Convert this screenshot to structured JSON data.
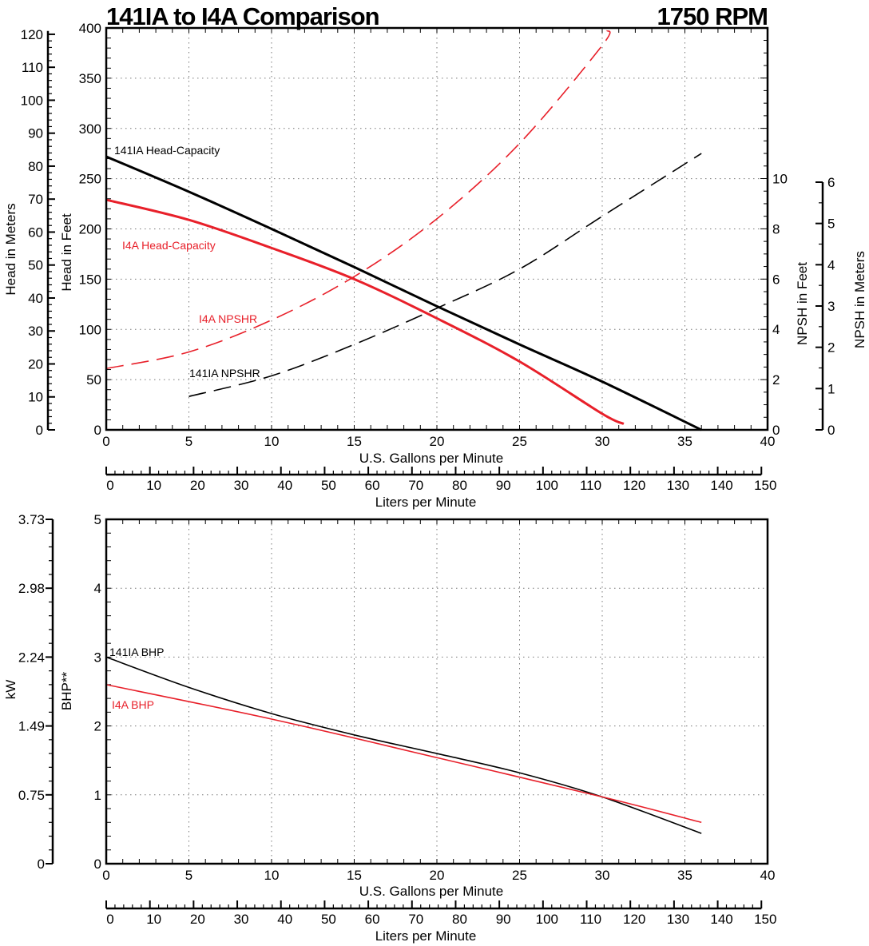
{
  "title": "141IA to I4A Comparison",
  "speed": "1750 RPM",
  "colors": {
    "pump_141IA": "#000000",
    "pump_I4A": "#e8202a",
    "grid": "#888888"
  },
  "chart_data": [
    {
      "type": "line",
      "xlabel": "U.S. Gallons per Minute",
      "x2label": "Liters per Minute",
      "ylabel": "Head in Feet",
      "y_meters_label": "Head in Meters",
      "y2label": "NPSH in Feet",
      "y2_meters_label": "NPSH in Meters",
      "xlim": [
        0,
        40
      ],
      "ylim": [
        0,
        400
      ],
      "y2lim": [
        0,
        16
      ],
      "grid": true,
      "x_ticks": [
        0,
        5,
        10,
        15,
        20,
        25,
        30,
        35,
        40
      ],
      "x2_ticks": [
        0,
        10,
        20,
        30,
        40,
        50,
        60,
        70,
        80,
        90,
        100,
        110,
        120,
        130,
        140,
        150
      ],
      "y_ticks": [
        0,
        50,
        100,
        150,
        200,
        250,
        300,
        350,
        400
      ],
      "y_meters_ticks": [
        0,
        10,
        20,
        30,
        40,
        50,
        60,
        70,
        80,
        90,
        100,
        110,
        120
      ],
      "y2_ticks": [
        0,
        2,
        4,
        6,
        8,
        10
      ],
      "y2_meters_ticks": [
        0,
        1,
        2,
        3,
        4,
        5,
        6
      ],
      "series": [
        {
          "name": "141IA Head-Capacity",
          "axis": "head",
          "color": "#000000",
          "dash": false,
          "x": [
            0,
            5,
            10,
            15,
            20,
            25,
            30,
            36
          ],
          "y": [
            272,
            237,
            200,
            162,
            123,
            85,
            48,
            0
          ]
        },
        {
          "name": "I4A Head-Capacity",
          "axis": "head",
          "color": "#e8202a",
          "dash": false,
          "x": [
            0,
            5,
            10,
            15,
            20,
            25,
            30,
            31.3
          ],
          "y": [
            229,
            209,
            181,
            150,
            111,
            68,
            16,
            6
          ]
        },
        {
          "name": "I4A NPSHR",
          "axis": "npsh",
          "color": "#e8202a",
          "dash": true,
          "x": [
            0,
            5,
            10,
            15,
            20,
            25,
            30,
            30.3
          ],
          "y": [
            2.44,
            3.1,
            4.37,
            6.1,
            8.4,
            11.4,
            15.3,
            15.9
          ]
        },
        {
          "name": "141IA NPSHR",
          "axis": "npsh",
          "color": "#000000",
          "dash": true,
          "x": [
            5,
            10,
            15,
            20,
            25,
            30,
            36
          ],
          "y": [
            1.33,
            2.15,
            3.4,
            4.84,
            6.4,
            8.5,
            11.0
          ]
        }
      ]
    },
    {
      "type": "line",
      "xlabel": "U.S. Gallons per Minute",
      "x2label": "Liters per Minute",
      "ylabel": "BHP**",
      "y_kw_label": "kW",
      "xlim": [
        0,
        40
      ],
      "ylim": [
        0,
        5
      ],
      "grid": true,
      "x_ticks": [
        0,
        5,
        10,
        15,
        20,
        25,
        30,
        35,
        40
      ],
      "x2_ticks": [
        0,
        10,
        20,
        30,
        40,
        50,
        60,
        70,
        80,
        90,
        100,
        110,
        120,
        130,
        140,
        150
      ],
      "y_ticks": [
        0,
        1,
        2,
        3,
        4,
        5
      ],
      "y_kw_ticks": [
        "0",
        "0.75",
        "1.49",
        "2.24",
        "2.98",
        "3.73"
      ],
      "series": [
        {
          "name": "141IA BHP",
          "color": "#000000",
          "x": [
            0,
            5,
            10,
            15,
            20,
            25,
            30,
            36
          ],
          "y": [
            3.0,
            2.56,
            2.18,
            1.87,
            1.6,
            1.32,
            0.97,
            0.44
          ]
        },
        {
          "name": "I4A BHP",
          "color": "#e8202a",
          "x": [
            0,
            10,
            20,
            30,
            36
          ],
          "y": [
            2.6,
            2.1,
            1.54,
            0.97,
            0.6
          ]
        }
      ]
    }
  ]
}
